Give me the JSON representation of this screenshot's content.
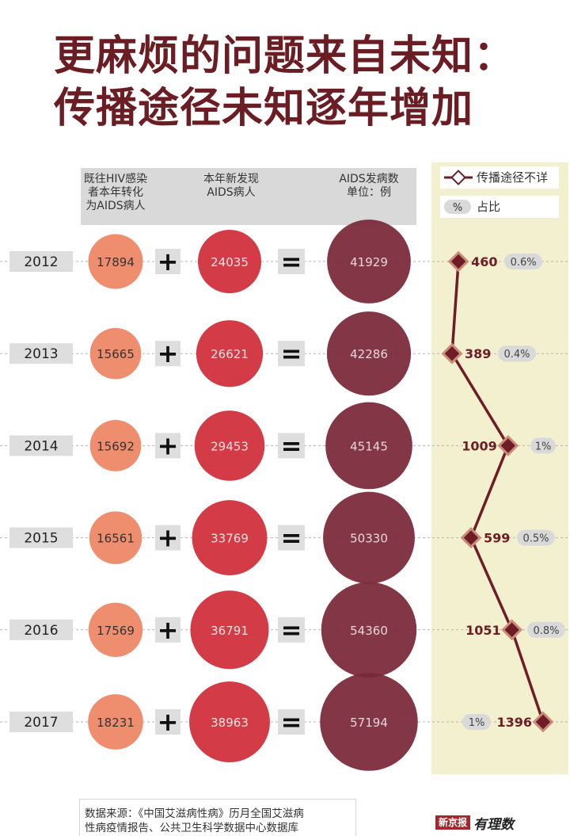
{
  "title": {
    "line1": "更麻烦的问题来自未知：",
    "line2": "传播途径未知逐年增加"
  },
  "headers": {
    "col1": [
      "既往HIV感染",
      "者本年转化",
      "为AIDS病人"
    ],
    "col2": [
      "本年新发现",
      "AIDS病人"
    ],
    "col3": [
      "AIDS发病数",
      "单位：例"
    ]
  },
  "legend": {
    "line_label": "传播途径不详",
    "pct_symbol": "%",
    "pct_label": "占比"
  },
  "colors": {
    "title": "#6b1d24",
    "prior": "#ef8e6f",
    "newfound": "#d33b46",
    "total": "#7a2838",
    "panel": "#f3f0d0",
    "line": "#6e1c26",
    "header_bg": "#d9d9d9",
    "year_bg": "#dedede"
  },
  "operators": {
    "plus": "+",
    "equals": "="
  },
  "chart_data": {
    "type": "table",
    "years": [
      "2012",
      "2013",
      "2014",
      "2015",
      "2016",
      "2017"
    ],
    "series": [
      {
        "name": "既往HIV感染者本年转化为AIDS病人",
        "values": [
          17894,
          15665,
          15692,
          16561,
          17569,
          18231
        ]
      },
      {
        "name": "本年新发现AIDS病人",
        "values": [
          24035,
          26621,
          29453,
          33769,
          36791,
          38963
        ]
      },
      {
        "name": "AIDS发病数",
        "values": [
          41929,
          42286,
          45145,
          50330,
          54360,
          57194
        ]
      }
    ],
    "unknown_route": {
      "name": "传播途径不详",
      "values": [
        460,
        389,
        1009,
        599,
        1051,
        1396
      ],
      "pct_labels": [
        "0.6%",
        "0.4%",
        "1%",
        "0.5%",
        "0.8%",
        "1%"
      ]
    }
  },
  "source": {
    "line1": "数据来源：《中国艾滋病性病》历月全国艾滋病",
    "line2": "性病疫情报告、公共卫生科学数据中心数据库"
  },
  "brand": {
    "paper": "新京报",
    "column": "有理数"
  }
}
